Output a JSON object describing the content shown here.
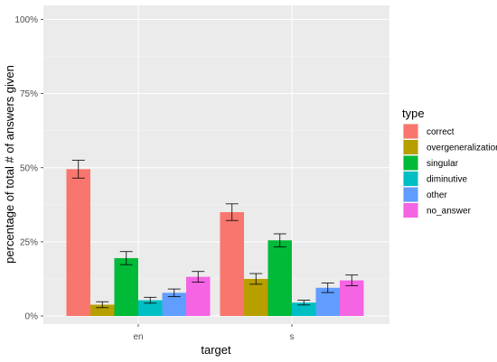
{
  "chart_data": {
    "type": "bar",
    "categories": [
      "en",
      "s"
    ],
    "series": [
      {
        "name": "correct",
        "color": "#F8766D",
        "values": [
          49.5,
          35.0
        ],
        "err": [
          3.0,
          2.8
        ]
      },
      {
        "name": "overgeneralization",
        "color": "#B79F00",
        "values": [
          3.8,
          12.5
        ],
        "err": [
          1.0,
          1.8
        ]
      },
      {
        "name": "singular",
        "color": "#00BA38",
        "values": [
          19.5,
          25.5
        ],
        "err": [
          2.2,
          2.2
        ]
      },
      {
        "name": "diminutive",
        "color": "#00BFC4",
        "values": [
          5.3,
          4.5
        ],
        "err": [
          1.0,
          0.8
        ]
      },
      {
        "name": "other",
        "color": "#619CFF",
        "values": [
          7.8,
          9.5
        ],
        "err": [
          1.3,
          1.6
        ]
      },
      {
        "name": "no_answer",
        "color": "#F564E3",
        "values": [
          13.2,
          12.0
        ],
        "err": [
          1.8,
          1.8
        ]
      }
    ],
    "xlabel": "target",
    "ylabel": "percentage of total # of answers given",
    "ylim": [
      0,
      100
    ],
    "yticks": [
      0,
      25,
      50,
      75,
      100
    ],
    "ytick_labels": [
      "0%",
      "25%",
      "50%",
      "75%",
      "100%"
    ],
    "legend_title": "type",
    "legend_position": "right",
    "grid": true
  }
}
